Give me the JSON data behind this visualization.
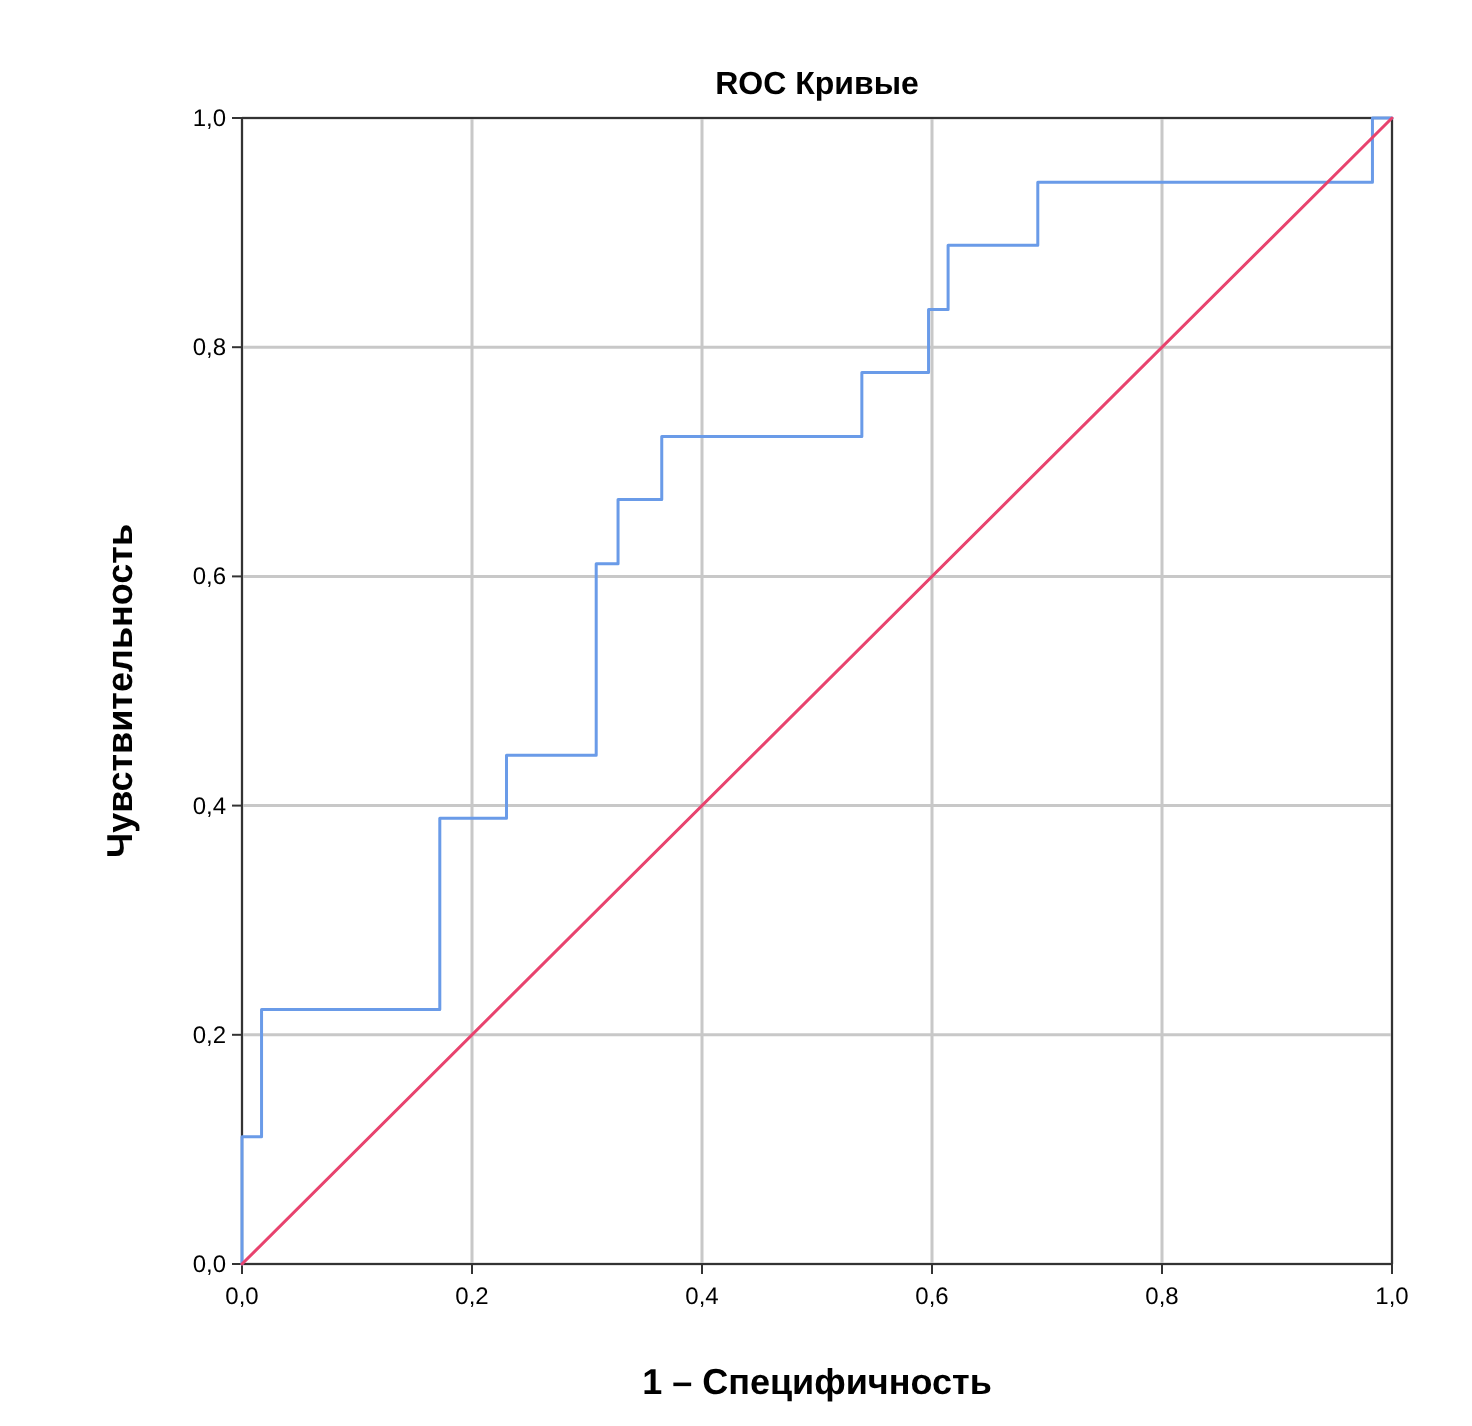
{
  "chart_data": {
    "type": "line",
    "title": "ROC Кривые",
    "xlabel": "1 – Специфичность",
    "ylabel": "Чувствительность",
    "xlim": [
      0,
      1
    ],
    "ylim": [
      0,
      1
    ],
    "xticks": [
      {
        "value": 0,
        "label": "0,0"
      },
      {
        "value": 0.2,
        "label": "0,2"
      },
      {
        "value": 0.4,
        "label": "0,4"
      },
      {
        "value": 0.6,
        "label": "0,6"
      },
      {
        "value": 0.8,
        "label": "0,8"
      },
      {
        "value": 1,
        "label": "1,0"
      }
    ],
    "yticks": [
      {
        "value": 0,
        "label": "0,0"
      },
      {
        "value": 0.2,
        "label": "0,2"
      },
      {
        "value": 0.4,
        "label": "0,4"
      },
      {
        "value": 0.6,
        "label": "0,6"
      },
      {
        "value": 0.8,
        "label": "0,8"
      },
      {
        "value": 1,
        "label": "1,0"
      }
    ],
    "grid": true,
    "series": [
      {
        "type": "step",
        "color": "#6a9be8",
        "x": [
          0,
          0,
          0.017,
          0.172,
          0.23,
          0.308,
          0.327,
          0.365,
          0.539,
          0.597,
          0.614,
          0.692,
          0.983,
          1.0
        ],
        "values": [
          0,
          0.111,
          0.222,
          0.389,
          0.444,
          0.611,
          0.667,
          0.722,
          0.778,
          0.833,
          0.889,
          0.944,
          1.0,
          1.0
        ]
      },
      {
        "type": "line",
        "color": "#e8436e",
        "x": [
          0,
          1
        ],
        "values": [
          0,
          1
        ]
      }
    ]
  }
}
